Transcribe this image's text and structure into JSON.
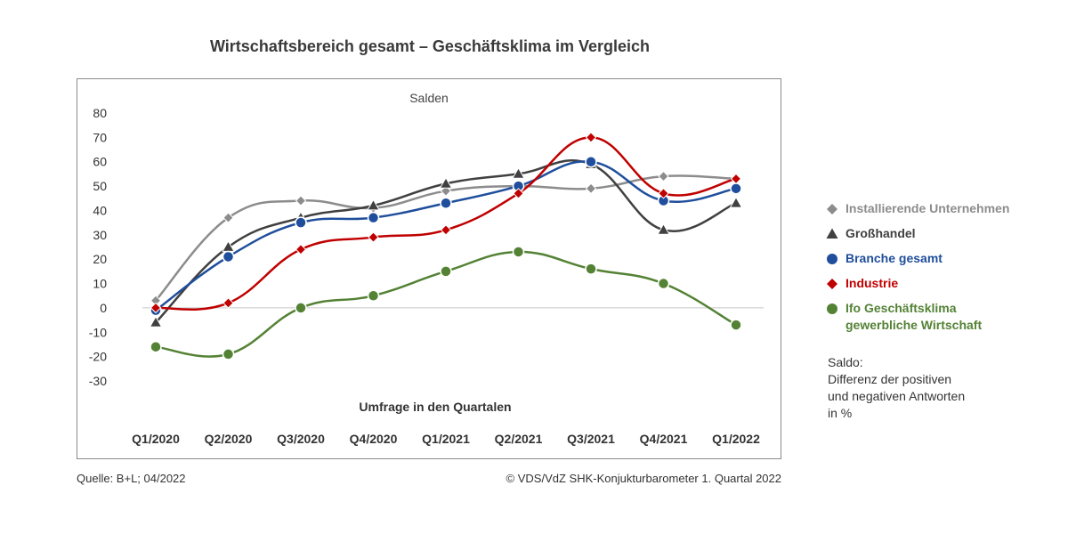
{
  "title": "Wirtschaftsbereich gesamt – Geschäftsklima im Vergleich",
  "footer": {
    "source": "Quelle: B+L; 04/2022",
    "copyright": "© VDS/VdZ SHK-Konjukturbarometer 1. Quartal 2022"
  },
  "note": {
    "lines": [
      "Saldo:",
      "Differenz der positiven",
      "und negativen Antworten",
      "in %"
    ]
  },
  "chart_data": {
    "type": "line",
    "subtitle": "Salden",
    "xlabel": "Umfrage in den Quartalen",
    "ylabel": "",
    "ylim": [
      -30,
      80
    ],
    "yticks": [
      80,
      70,
      60,
      50,
      40,
      30,
      20,
      10,
      0,
      -10,
      -20,
      -30
    ],
    "categories": [
      "Q1/2020",
      "Q2/2020",
      "Q3/2020",
      "Q4/2020",
      "Q1/2021",
      "Q2/2021",
      "Q3/2021",
      "Q4/2021",
      "Q1/2022"
    ],
    "legend_position": "right",
    "series": [
      {
        "name": "Installierende Unternehmen",
        "marker": "diamond",
        "color": "#8c8c8c",
        "values": [
          3,
          37,
          44,
          41,
          48,
          50,
          49,
          54,
          53
        ]
      },
      {
        "name": "Großhandel",
        "marker": "triangle",
        "color": "#404040",
        "values": [
          -6,
          25,
          37,
          42,
          51,
          55,
          59,
          32,
          43
        ]
      },
      {
        "name": "Branche gesamt",
        "marker": "circle",
        "color": "#1f4e9c",
        "values": [
          -1,
          21,
          35,
          37,
          43,
          50,
          60,
          44,
          49
        ]
      },
      {
        "name": "Industrie",
        "marker": "diamond",
        "color": "#c00000",
        "values": [
          0,
          2,
          24,
          29,
          32,
          47,
          70,
          47,
          53
        ]
      },
      {
        "name": "Ifo Geschäftsklima gewerbliche Wirtschaft",
        "legend_lines": [
          "Ifo Geschäftsklima",
          "gewerbliche Wirtschaft"
        ],
        "marker": "circle",
        "color": "#548235",
        "values": [
          -16,
          -19,
          0,
          5,
          15,
          23,
          16,
          10,
          -7
        ]
      }
    ]
  }
}
